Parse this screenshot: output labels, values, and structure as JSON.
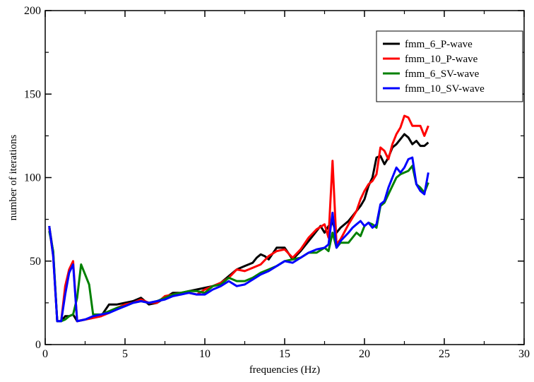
{
  "chart_data": {
    "type": "line",
    "title": "",
    "xlabel": "frequencies (Hz)",
    "ylabel": "number of iterations",
    "xlim": [
      0,
      30
    ],
    "ylim": [
      0,
      200
    ],
    "xticks": [
      0,
      5,
      10,
      15,
      20,
      25,
      30
    ],
    "yticks": [
      0,
      50,
      100,
      150,
      200
    ],
    "xtick_labels": [
      "0",
      "5",
      "10",
      "15",
      "20",
      "25",
      "30"
    ],
    "ytick_labels": [
      "0",
      "50",
      "100",
      "150",
      "200"
    ],
    "grid": false,
    "legend_position": "top-right",
    "series": [
      {
        "name": "fmm_6_P-wave",
        "color": "#000000",
        "x": [
          0.25,
          0.5,
          0.75,
          1.0,
          1.25,
          1.5,
          1.75,
          2.0,
          2.5,
          3.0,
          3.5,
          4.0,
          4.5,
          5.0,
          5.5,
          6.0,
          6.5,
          7.0,
          7.5,
          8.0,
          8.5,
          9.0,
          9.5,
          10.0,
          10.5,
          11.0,
          11.5,
          12.0,
          12.5,
          13.0,
          13.25,
          13.5,
          13.75,
          14.0,
          14.5,
          15.0,
          15.5,
          16.0,
          16.5,
          17.0,
          17.25,
          17.5,
          17.75,
          18.0,
          18.25,
          18.5,
          19.0,
          19.25,
          19.5,
          19.75,
          20.0,
          20.25,
          20.5,
          20.75,
          21.0,
          21.25,
          21.5,
          21.75,
          22.0,
          22.25,
          22.5,
          22.75,
          23.0,
          23.25,
          23.5,
          23.75,
          24.0
        ],
        "y": [
          71,
          55,
          14,
          14,
          17,
          17,
          18,
          14,
          15,
          16,
          17,
          24,
          24,
          25,
          26,
          28,
          24,
          25,
          28,
          31,
          31,
          32,
          33,
          34,
          35,
          37,
          41,
          45,
          47,
          49,
          52,
          54,
          53,
          51,
          58,
          58,
          51,
          56,
          62,
          68,
          71,
          67,
          71,
          73,
          67,
          70,
          74,
          77,
          80,
          83,
          87,
          95,
          100,
          112,
          113,
          108,
          112,
          118,
          120,
          123,
          126,
          124,
          120,
          122,
          119,
          119,
          121
        ]
      },
      {
        "name": "fmm_10_P-wave",
        "color": "#ff0000",
        "x": [
          0.25,
          0.5,
          0.75,
          1.0,
          1.25,
          1.5,
          1.75,
          2.0,
          2.5,
          3.0,
          3.5,
          4.0,
          4.5,
          5.0,
          5.5,
          6.0,
          6.5,
          7.0,
          7.5,
          8.0,
          8.5,
          9.0,
          9.5,
          10.0,
          10.5,
          11.0,
          11.5,
          12.0,
          12.5,
          13.0,
          13.5,
          14.0,
          14.5,
          15.0,
          15.5,
          16.0,
          16.5,
          17.0,
          17.5,
          17.75,
          18.0,
          18.25,
          18.5,
          19.0,
          19.5,
          19.75,
          20.0,
          20.25,
          20.5,
          20.75,
          21.0,
          21.25,
          21.5,
          21.75,
          22.0,
          22.25,
          22.5,
          22.75,
          23.0,
          23.25,
          23.5,
          23.75,
          24.0
        ],
        "y": [
          70,
          53,
          14,
          14,
          35,
          45,
          50,
          14,
          15,
          16,
          17,
          19,
          22,
          24,
          25,
          27,
          25,
          25,
          29,
          30,
          31,
          31,
          30,
          33,
          35,
          37,
          40,
          45,
          44,
          46,
          48,
          53,
          56,
          57,
          52,
          57,
          64,
          69,
          72,
          64,
          110,
          60,
          63,
          72,
          80,
          87,
          92,
          96,
          98,
          102,
          118,
          116,
          111,
          120,
          126,
          130,
          137,
          136,
          131,
          131,
          131,
          125,
          131
        ]
      },
      {
        "name": "fmm_6_SV-wave",
        "color": "#008000",
        "x": [
          0.25,
          0.5,
          0.75,
          1.0,
          1.25,
          1.5,
          1.75,
          2.0,
          2.25,
          2.5,
          2.75,
          3.0,
          3.5,
          4.0,
          4.5,
          5.0,
          5.5,
          6.0,
          6.5,
          7.0,
          7.5,
          8.0,
          8.5,
          9.0,
          9.5,
          10.0,
          10.5,
          11.0,
          11.5,
          12.0,
          12.5,
          13.0,
          13.5,
          14.0,
          14.5,
          15.0,
          15.5,
          16.0,
          16.5,
          17.0,
          17.5,
          17.75,
          18.0,
          18.25,
          18.5,
          19.0,
          19.5,
          19.75,
          20.0,
          20.25,
          20.5,
          20.75,
          21.0,
          21.25,
          21.5,
          21.75,
          22.0,
          22.25,
          22.5,
          22.75,
          23.0,
          23.25,
          23.5,
          23.75,
          24.0
        ],
        "y": [
          68,
          56,
          14,
          14,
          15,
          17,
          18,
          28,
          48,
          42,
          36,
          18,
          18,
          20,
          22,
          23,
          25,
          26,
          25,
          26,
          28,
          30,
          31,
          32,
          32,
          31,
          35,
          36,
          40,
          38,
          38,
          40,
          43,
          45,
          47,
          50,
          51,
          52,
          55,
          55,
          58,
          56,
          67,
          58,
          61,
          61,
          67,
          65,
          71,
          73,
          72,
          70,
          83,
          85,
          90,
          95,
          100,
          102,
          103,
          104,
          107,
          96,
          94,
          91,
          97
        ]
      },
      {
        "name": "fmm_10_SV-wave",
        "color": "#0000ff",
        "x": [
          0.25,
          0.5,
          0.75,
          1.0,
          1.25,
          1.5,
          1.75,
          2.0,
          2.5,
          3.0,
          3.5,
          4.0,
          4.5,
          5.0,
          5.5,
          6.0,
          6.5,
          7.0,
          7.5,
          8.0,
          8.5,
          9.0,
          9.5,
          10.0,
          10.5,
          11.0,
          11.5,
          12.0,
          12.5,
          13.0,
          13.5,
          14.0,
          14.5,
          15.0,
          15.5,
          16.0,
          16.5,
          17.0,
          17.5,
          17.75,
          18.0,
          18.25,
          18.5,
          19.0,
          19.25,
          19.5,
          19.75,
          20.0,
          20.25,
          20.5,
          20.75,
          21.0,
          21.25,
          21.5,
          21.75,
          22.0,
          22.25,
          22.5,
          22.75,
          23.0,
          23.25,
          23.5,
          23.75,
          24.0
        ],
        "y": [
          71,
          53,
          14,
          14,
          30,
          43,
          48,
          14,
          15,
          17,
          18,
          19,
          21,
          23,
          25,
          26,
          25,
          26,
          27,
          29,
          30,
          31,
          30,
          30,
          33,
          35,
          38,
          35,
          36,
          39,
          42,
          44,
          47,
          50,
          49,
          52,
          55,
          57,
          58,
          60,
          79,
          58,
          62,
          67,
          70,
          72,
          74,
          71,
          73,
          70,
          72,
          84,
          86,
          94,
          100,
          106,
          103,
          106,
          111,
          112,
          96,
          92,
          90,
          103
        ]
      }
    ]
  }
}
